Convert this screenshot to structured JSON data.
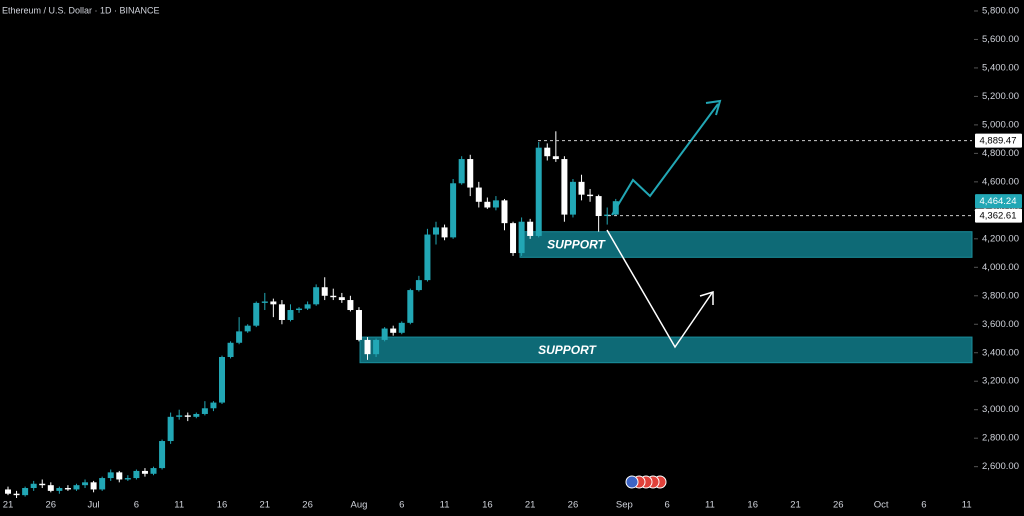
{
  "chart_data": {
    "type": "candlestick",
    "title": "Ethereum / U.S. Dollar · 1D · BINANCE",
    "categories": [
      "21",
      null,
      null,
      null,
      null,
      "26",
      null,
      null,
      null,
      null,
      "Jul",
      null,
      null,
      null,
      null,
      "6",
      null,
      null,
      null,
      null,
      "11",
      null,
      null,
      null,
      null,
      "16",
      null,
      null,
      null,
      null,
      "21",
      null,
      null,
      null,
      null,
      "26",
      null,
      null,
      null,
      null,
      null,
      "Aug",
      null,
      null,
      null,
      null,
      "6",
      null,
      null,
      null,
      null,
      "11",
      null,
      null,
      null,
      null,
      "16",
      null,
      null,
      null,
      null,
      "21",
      null,
      null,
      null,
      null,
      "26",
      null,
      null,
      null,
      null,
      null,
      "Sep",
      null,
      null,
      null,
      null,
      "6",
      null,
      null,
      null,
      null,
      "11",
      null,
      null,
      null,
      null,
      "16",
      null,
      null,
      null,
      null,
      "21",
      null,
      null,
      null,
      null,
      "26",
      null,
      null,
      null,
      null,
      "Oct",
      null,
      null,
      null,
      null,
      "6",
      null,
      null,
      null,
      null,
      "11",
      null
    ],
    "open": [
      2440,
      2410,
      2400,
      2450,
      2480,
      2470,
      2430,
      2450,
      2440,
      2470,
      2490,
      2440,
      2520,
      2560,
      2510,
      2520,
      2570,
      2550,
      2590,
      2780,
      2950,
      2960,
      2950,
      2970,
      3010,
      3050,
      3370,
      3470,
      3550,
      3590,
      3750,
      3760,
      3740,
      3630,
      3700,
      3710,
      3740,
      3860,
      3800,
      3790,
      3770,
      3700,
      3490,
      3390,
      3490,
      3570,
      3540,
      3610,
      3840,
      3910,
      4230,
      4280,
      4210,
      4590,
      4760,
      4560,
      4460,
      4420,
      4470,
      4310,
      4100,
      4320,
      4220,
      4840,
      4780,
      4760,
      4370,
      4600,
      4510,
      4500,
      4360,
      4370,
      null,
      null,
      null,
      null,
      null,
      null,
      null,
      null,
      null,
      null,
      null,
      null,
      null,
      null,
      null,
      null,
      null,
      null,
      null,
      null,
      null,
      null,
      null,
      null,
      null,
      null,
      null,
      null,
      null,
      null,
      null,
      null,
      null,
      null,
      null,
      null,
      null,
      null,
      null,
      null,
      null,
      null
    ],
    "high": [
      2460,
      2430,
      2460,
      2500,
      2510,
      2490,
      2460,
      2470,
      2480,
      2510,
      2500,
      2530,
      2580,
      2570,
      2540,
      2580,
      2590,
      2600,
      2790,
      2980,
      3000,
      2980,
      2980,
      3060,
      3060,
      3380,
      3480,
      3650,
      3600,
      3760,
      3820,
      3780,
      3770,
      3740,
      3720,
      3760,
      3880,
      3930,
      3850,
      3820,
      3800,
      3720,
      3510,
      3500,
      3580,
      3590,
      3620,
      3850,
      3940,
      4270,
      4320,
      4300,
      4620,
      4780,
      4790,
      4600,
      4490,
      4500,
      4480,
      4320,
      4350,
      4340,
      4880,
      4870,
      4955,
      4780,
      4620,
      4650,
      4550,
      4510,
      4420,
      4480,
      null,
      null,
      null,
      null,
      null,
      null,
      null,
      null,
      null,
      null,
      null,
      null,
      null,
      null,
      null,
      null,
      null,
      null,
      null,
      null,
      null,
      null,
      null,
      null,
      null,
      null,
      null,
      null,
      null,
      null,
      null,
      null,
      null,
      null,
      null,
      null,
      null,
      null,
      null,
      null,
      null,
      null
    ],
    "low": [
      2400,
      2380,
      2390,
      2430,
      2450,
      2420,
      2410,
      2430,
      2430,
      2450,
      2420,
      2430,
      2500,
      2490,
      2500,
      2510,
      2530,
      2540,
      2580,
      2760,
      2930,
      2920,
      2940,
      2960,
      2990,
      3040,
      3360,
      3460,
      3540,
      3580,
      3700,
      3650,
      3600,
      3620,
      3680,
      3700,
      3730,
      3770,
      3770,
      3750,
      3690,
      3480,
      3350,
      3370,
      3480,
      3520,
      3530,
      3600,
      3830,
      3900,
      4160,
      4190,
      4200,
      4580,
      4500,
      4420,
      4410,
      4400,
      4260,
      4080,
      4080,
      4200,
      4210,
      4750,
      4740,
      4320,
      4350,
      4470,
      4460,
      4250,
      4300,
      4360,
      null,
      null,
      null,
      null,
      null,
      null,
      null,
      null,
      null,
      null,
      null,
      null,
      null,
      null,
      null,
      null,
      null,
      null,
      null,
      null,
      null,
      null,
      null,
      null,
      null,
      null,
      null,
      null,
      null,
      null,
      null,
      null,
      null,
      null,
      null,
      null,
      null,
      null,
      null,
      null,
      null,
      null
    ],
    "close": [
      2410,
      2400,
      2450,
      2480,
      2470,
      2430,
      2450,
      2440,
      2470,
      2490,
      2440,
      2520,
      2560,
      2510,
      2520,
      2570,
      2550,
      2590,
      2780,
      2950,
      2960,
      2950,
      2970,
      3010,
      3050,
      3370,
      3470,
      3550,
      3590,
      3750,
      3760,
      3740,
      3630,
      3700,
      3710,
      3740,
      3860,
      3800,
      3790,
      3770,
      3700,
      3490,
      3390,
      3490,
      3570,
      3540,
      3610,
      3840,
      3910,
      4230,
      4280,
      4210,
      4590,
      4760,
      4560,
      4460,
      4420,
      4470,
      4310,
      4100,
      4320,
      4220,
      4840,
      4780,
      4760,
      4370,
      4600,
      4510,
      4500,
      4360,
      4370,
      4464.24,
      null,
      null,
      null,
      null,
      null,
      null,
      null,
      null,
      null,
      null,
      null,
      null,
      null,
      null,
      null,
      null,
      null,
      null,
      null,
      null,
      null,
      null,
      null,
      null,
      null,
      null,
      null,
      null,
      null,
      null,
      null,
      null,
      null,
      null,
      null,
      null,
      null,
      null,
      null,
      null,
      null,
      null
    ],
    "up_color": "#22a7b5",
    "down_color": "#ffffff",
    "ylim": [
      2394,
      5877
    ],
    "yticks": [
      {
        "value": 2600,
        "label": "2,600.00"
      },
      {
        "value": 2800,
        "label": "2,800.00"
      },
      {
        "value": 3000,
        "label": "3,000.00"
      },
      {
        "value": 3200,
        "label": "3,200.00"
      },
      {
        "value": 3400,
        "label": "3,400.00"
      },
      {
        "value": 3600,
        "label": "3,600.00"
      },
      {
        "value": 3800,
        "label": "3,800.00"
      },
      {
        "value": 4000,
        "label": "4,000.00"
      },
      {
        "value": 4200,
        "label": "4,200.00"
      },
      {
        "value": 4400,
        "label": "4,400.00"
      },
      {
        "value": 4600,
        "label": "4,600.00"
      },
      {
        "value": 4800,
        "label": "4,800.00"
      },
      {
        "value": 5000,
        "label": "5,000.00"
      },
      {
        "value": 5200,
        "label": "5,200.00"
      },
      {
        "value": 5400,
        "label": "5,400.00"
      },
      {
        "value": 5600,
        "label": "5,600.00"
      },
      {
        "value": 5800,
        "label": "5,800.00"
      }
    ],
    "levels": [
      {
        "value": 4889.47,
        "label": "4,889.47"
      },
      {
        "value": 4362.61,
        "label": "4,362.61"
      }
    ],
    "last_price": {
      "value": 4464.24,
      "label": "4,464.24"
    },
    "zones": [
      {
        "label": "SUPPORT",
        "low": 4070,
        "high": 4250
      },
      {
        "label": "SUPPORT",
        "low": 3330,
        "high": 3510
      }
    ],
    "zone_color": "#0e6a76"
  }
}
